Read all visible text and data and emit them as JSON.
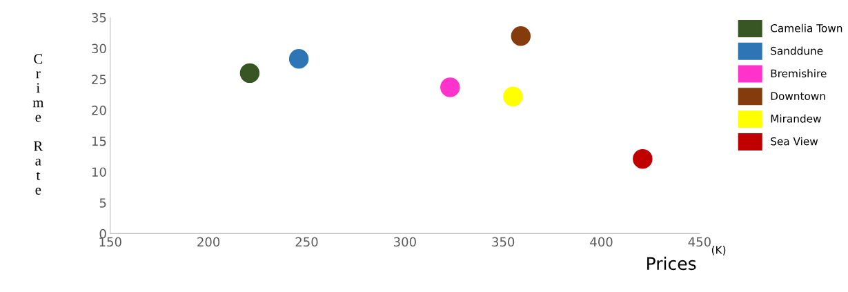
{
  "chart_data": {
    "type": "scatter",
    "xlabel": "Prices",
    "ylabel": "Crime Rate",
    "annotations": [
      "(K)"
    ],
    "series": [
      {
        "name": "Camelia Town",
        "color": "#375623",
        "x": [
          221
        ],
        "values": [
          26
        ]
      },
      {
        "name": "Sanddune",
        "color": "#2e75b6",
        "x": [
          246
        ],
        "values": [
          28.3
        ]
      },
      {
        "name": "Bremishire",
        "color": "#ff33cc",
        "x": [
          323
        ],
        "values": [
          23.7
        ]
      },
      {
        "name": "Downtown",
        "color": "#843c0c",
        "x": [
          359
        ],
        "values": [
          32
        ]
      },
      {
        "name": "Mirandew",
        "color": "#ffff00",
        "x": [
          355
        ],
        "values": [
          22.2
        ]
      },
      {
        "name": "Sea View",
        "color": "#c00000",
        "x": [
          421
        ],
        "values": [
          12.1
        ]
      }
    ],
    "xlim": [
      150,
      450
    ],
    "xticks": [
      150,
      200,
      250,
      300,
      350,
      400,
      450
    ],
    "ylim": [
      0,
      35
    ],
    "yticks": [
      0,
      5,
      10,
      15,
      20,
      25,
      30,
      35
    ],
    "grid": false,
    "legend": "right",
    "marker": "circle"
  }
}
